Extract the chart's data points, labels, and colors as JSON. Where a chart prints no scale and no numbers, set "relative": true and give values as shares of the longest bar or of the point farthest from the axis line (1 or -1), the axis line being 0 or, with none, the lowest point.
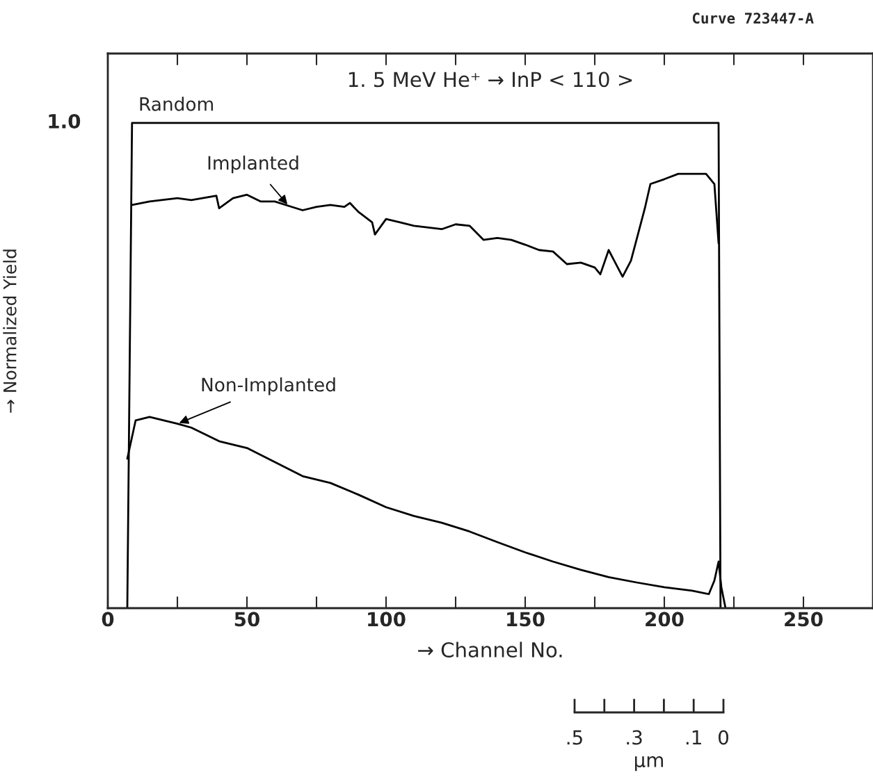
{
  "chart_data": {
    "type": "line",
    "title": "1. 5 MeV He⁺ → InP < 110 >",
    "xlabel": "→ Channel No.",
    "ylabel": "→ Normalized Yield",
    "annotations": [
      "Curve 723447-A",
      "1.0"
    ],
    "xlim": [
      0,
      274
    ],
    "relative": true,
    "xticks": [
      0,
      50,
      100,
      150,
      200,
      250
    ],
    "x2label": "μm",
    "x2lim": [
      0.5,
      0
    ],
    "x2ticks": [
      {
        "value": 0.5,
        "label": ".5"
      },
      {
        "value": 0.3,
        "label": ".3"
      },
      {
        "value": 0.1,
        "label": ".1"
      },
      0
    ],
    "grid": false,
    "legend": false,
    "marker": "none",
    "line_style": "solid",
    "series": [
      {
        "name": "Random",
        "color": "#000000",
        "x": [
          7,
          8.7,
          219.5,
          220.2
        ],
        "values": [
          0,
          1.0,
          1.0,
          0
        ]
      },
      {
        "name": "Implanted",
        "color": "#000000",
        "x": [
          8.7,
          15,
          25,
          30,
          39,
          40,
          45,
          50,
          55,
          60,
          65,
          70,
          75,
          80,
          85,
          87,
          90,
          95,
          96,
          100,
          105,
          110,
          120,
          125,
          130,
          135,
          140,
          145,
          150,
          155,
          160,
          165,
          170,
          175,
          177,
          180,
          182,
          185,
          188,
          190,
          193,
          195,
          200,
          205,
          210,
          215,
          218,
          219.5
        ],
        "values": [
          0.831,
          0.838,
          0.845,
          0.841,
          0.85,
          0.824,
          0.845,
          0.852,
          0.838,
          0.838,
          0.829,
          0.82,
          0.827,
          0.831,
          0.827,
          0.835,
          0.817,
          0.795,
          0.77,
          0.802,
          0.795,
          0.788,
          0.781,
          0.791,
          0.788,
          0.759,
          0.763,
          0.759,
          0.749,
          0.738,
          0.735,
          0.709,
          0.712,
          0.702,
          0.688,
          0.738,
          0.716,
          0.683,
          0.716,
          0.759,
          0.824,
          0.874,
          0.884,
          0.895,
          0.895,
          0.895,
          0.874,
          0.752
        ]
      },
      {
        "name": "Non-Implanted",
        "color": "#000000",
        "x": [
          7,
          10,
          15,
          25,
          30,
          40,
          50,
          60,
          70,
          80,
          90,
          100,
          110,
          120,
          130,
          140,
          150,
          160,
          170,
          180,
          190,
          200,
          210,
          216,
          218,
          219.5,
          220.5,
          222
        ],
        "values": [
          0.308,
          0.387,
          0.394,
          0.38,
          0.372,
          0.344,
          0.33,
          0.301,
          0.272,
          0.258,
          0.234,
          0.208,
          0.19,
          0.176,
          0.158,
          0.136,
          0.115,
          0.096,
          0.079,
          0.064,
          0.053,
          0.043,
          0.036,
          0.029,
          0.057,
          0.096,
          0.043,
          0
        ]
      }
    ]
  }
}
